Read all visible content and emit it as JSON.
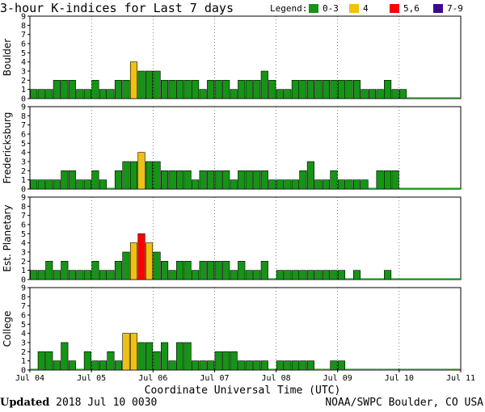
{
  "title": "3-hour K-indices for Last 7 days",
  "legend": {
    "label": "Legend:",
    "items": [
      {
        "label": "0-3",
        "color": "#159415"
      },
      {
        "label": "4",
        "color": "#f0c012"
      },
      {
        "label": "5,6",
        "color": "#ff0000"
      },
      {
        "label": "7-9",
        "color": "#3c0a8c"
      }
    ]
  },
  "footer": {
    "updated_label": "Updated",
    "updated_value": "2018 Jul 10 0030",
    "source": "NOAA/SWPC Boulder, CO USA"
  },
  "chart_data": {
    "type": "bar",
    "xlabel": "Coordinate Universal Time (UTC)",
    "x_ticks": [
      "Jul 04",
      "Jul 05",
      "Jul 06",
      "Jul 07",
      "Jul 08",
      "Jul 09",
      "Jul 10",
      "Jul 11"
    ],
    "ylim": [
      0,
      9
    ],
    "y_ticks": [
      0,
      1,
      2,
      3,
      4,
      5,
      6,
      7,
      8,
      9
    ],
    "color_scale": {
      "0-3": "#159415",
      "4": "#f0c012",
      "5,6": "#ff0000",
      "7-9": "#3c0a8c"
    },
    "panels": [
      {
        "name": "Boulder",
        "values": [
          1,
          1,
          1,
          2,
          2,
          2,
          1,
          1,
          2,
          1,
          1,
          2,
          2,
          4,
          3,
          3,
          3,
          2,
          2,
          2,
          2,
          2,
          1,
          2,
          2,
          2,
          1,
          2,
          2,
          2,
          3,
          2,
          1,
          1,
          2,
          2,
          2,
          2,
          2,
          2,
          2,
          2,
          2,
          1,
          1,
          1,
          2,
          1,
          1,
          0,
          0,
          0,
          0,
          0,
          0,
          0
        ]
      },
      {
        "name": "Fredericksburg",
        "values": [
          1,
          1,
          1,
          1,
          2,
          2,
          1,
          1,
          2,
          1,
          0,
          2,
          3,
          3,
          4,
          3,
          3,
          2,
          2,
          2,
          2,
          1,
          2,
          2,
          2,
          2,
          1,
          2,
          2,
          2,
          2,
          1,
          1,
          1,
          1,
          2,
          3,
          1,
          1,
          2,
          1,
          1,
          1,
          1,
          0,
          2,
          2,
          2,
          0,
          0,
          0,
          0,
          0,
          0,
          0,
          0
        ]
      },
      {
        "name": "Est. Planetary",
        "values": [
          1,
          1,
          2,
          1,
          2,
          1,
          1,
          1,
          2,
          1,
          1,
          2,
          3,
          4,
          5,
          4,
          3,
          2,
          1,
          2,
          2,
          1,
          2,
          2,
          2,
          2,
          1,
          2,
          1,
          1,
          2,
          0,
          1,
          1,
          1,
          1,
          1,
          1,
          1,
          1,
          1,
          0,
          1,
          0,
          0,
          0,
          1,
          0,
          0,
          0,
          0,
          0,
          0,
          0,
          0,
          0
        ]
      },
      {
        "name": "College",
        "values": [
          0,
          2,
          2,
          1,
          3,
          1,
          0,
          2,
          1,
          1,
          2,
          1,
          4,
          4,
          3,
          3,
          2,
          3,
          1,
          3,
          3,
          1,
          1,
          1,
          2,
          2,
          2,
          1,
          1,
          1,
          1,
          0,
          1,
          1,
          1,
          1,
          1,
          0,
          0,
          1,
          1,
          0,
          0,
          0,
          0,
          0,
          0,
          0,
          0,
          0,
          0,
          0,
          0,
          0,
          0,
          0
        ]
      }
    ]
  }
}
